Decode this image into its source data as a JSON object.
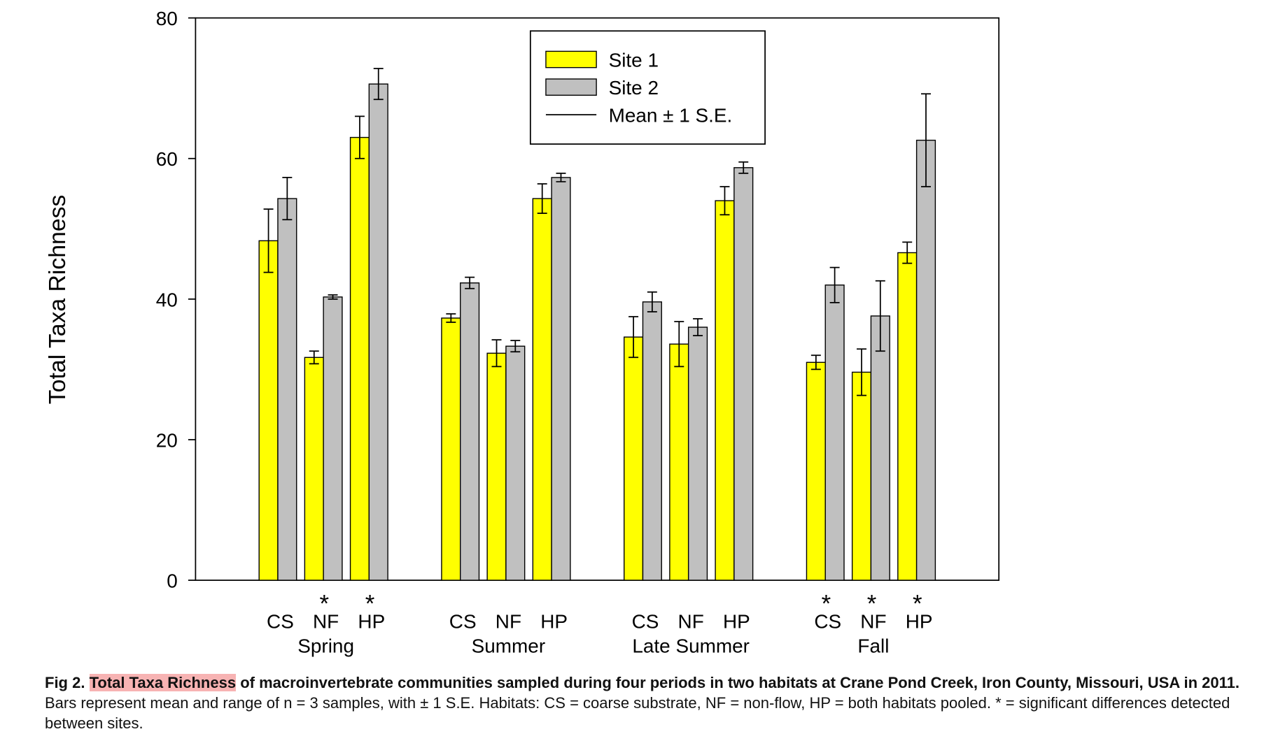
{
  "chart_data": {
    "type": "bar",
    "ylabel": "Total Taxa Richness",
    "categories": [
      "CS",
      "NF",
      "HP",
      "CS",
      "NF",
      "HP",
      "CS",
      "NF",
      "HP",
      "CS",
      "NF",
      "HP"
    ],
    "groups": [
      "Spring",
      "Summer",
      "Late Summer",
      "Fall"
    ],
    "series": [
      {
        "name": "Site 1",
        "color": "#ffff00",
        "values": [
          48.3,
          31.7,
          63.0,
          37.3,
          32.3,
          54.3,
          34.6,
          33.6,
          54.0,
          31.0,
          29.6,
          46.6
        ],
        "errors": [
          4.5,
          0.9,
          3.0,
          0.6,
          1.9,
          2.1,
          2.9,
          3.2,
          2.0,
          1.0,
          3.3,
          1.5
        ]
      },
      {
        "name": "Site 2",
        "color": "#c0c0c0",
        "values": [
          54.3,
          40.3,
          70.6,
          42.3,
          33.3,
          57.3,
          39.6,
          36.0,
          58.7,
          42.0,
          37.6,
          62.6
        ],
        "errors": [
          3.0,
          0.3,
          2.2,
          0.8,
          0.8,
          0.6,
          1.4,
          1.2,
          0.8,
          2.5,
          5.0,
          6.6
        ]
      }
    ],
    "error_label": "Mean ± 1 S.E.",
    "significance_marker": "*",
    "significant": [
      false,
      true,
      true,
      false,
      false,
      false,
      false,
      false,
      false,
      true,
      true,
      true
    ],
    "ylim": [
      0,
      80
    ],
    "yticks": [
      0,
      20,
      40,
      60,
      80
    ],
    "legend": "top-center"
  },
  "caption": {
    "label": "Fig 2.",
    "title_highlight": "Total Taxa Richness",
    "title_rest": "of macroinvertebrate communities sampled during four periods in two habitats at Crane Pond Creek, Iron County, Missouri, USA in 2011.",
    "text": "Bars represent mean and range of n = 3 samples, with ± 1 S.E. Habitats: CS = coarse substrate, NF = non-flow, HP = both habitats pooled. * = significant differences detected between sites."
  }
}
